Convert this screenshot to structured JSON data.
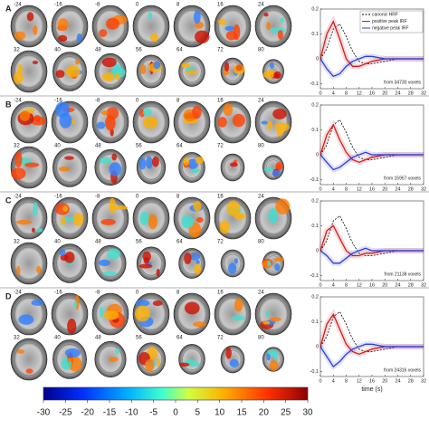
{
  "panels": [
    {
      "label": "A",
      "voxels": "from 34730 voxels",
      "chart": {
        "type": "line",
        "x": [
          0,
          2,
          4,
          6,
          8,
          10,
          12,
          14,
          16,
          20,
          24,
          28,
          32
        ],
        "xlim": [
          0,
          32
        ],
        "xticks": [
          0,
          4,
          8,
          12,
          16,
          20,
          24,
          28,
          32
        ],
        "ylim": [
          -0.12,
          0.2
        ],
        "yticks": [
          0.2,
          0.1,
          0,
          -0.1
        ],
        "legend": "upper right",
        "series": [
          {
            "name": "canonic HRF",
            "color": "#000000",
            "style": "dashed",
            "values": [
              0,
              0.04,
              0.12,
              0.14,
              0.09,
              0.03,
              -0.01,
              -0.02,
              -0.02,
              -0.01,
              0,
              0,
              0
            ]
          },
          {
            "name": "positive peak IRF",
            "color": "#d7191c",
            "style": "solid",
            "values": [
              0,
              0.1,
              0.15,
              0.08,
              0,
              -0.03,
              -0.03,
              -0.02,
              -0.01,
              0,
              0,
              0,
              0
            ]
          },
          {
            "name": "negative peak IRF",
            "color": "#2c3fd6",
            "style": "solid",
            "values": [
              0,
              -0.04,
              -0.07,
              -0.06,
              -0.03,
              -0.01,
              0,
              0.01,
              0.01,
              0,
              0,
              0,
              0
            ]
          }
        ]
      }
    },
    {
      "label": "B",
      "voxels": "from 15957 voxels",
      "chart": {
        "type": "line",
        "x": [
          0,
          2,
          4,
          6,
          8,
          10,
          12,
          14,
          16,
          20,
          24,
          28,
          32
        ],
        "xlim": [
          0,
          32
        ],
        "xticks": [
          0,
          4,
          8,
          12,
          16,
          20,
          24,
          28,
          32
        ],
        "ylim": [
          -0.12,
          0.2
        ],
        "yticks": [
          0.2,
          0.1,
          0,
          -0.1
        ],
        "series": [
          {
            "name": "canonic HRF",
            "color": "#000000",
            "style": "dashed",
            "values": [
              0,
              0.04,
              0.12,
              0.14,
              0.09,
              0.03,
              -0.01,
              -0.02,
              -0.02,
              -0.01,
              0,
              0,
              0
            ]
          },
          {
            "name": "positive peak IRF",
            "color": "#d7191c",
            "style": "solid",
            "values": [
              0,
              0.08,
              0.12,
              0.06,
              0.01,
              -0.02,
              -0.03,
              -0.02,
              -0.01,
              0,
              0,
              0,
              0
            ]
          },
          {
            "name": "negative peak IRF",
            "color": "#2c3fd6",
            "style": "solid",
            "values": [
              0,
              -0.03,
              -0.06,
              -0.05,
              -0.03,
              -0.01,
              0,
              0.01,
              0,
              0,
              0,
              0,
              0
            ]
          }
        ]
      }
    },
    {
      "label": "C",
      "voxels": "from 21138 voxels",
      "chart": {
        "type": "line",
        "x": [
          0,
          2,
          4,
          6,
          8,
          10,
          12,
          14,
          16,
          20,
          24,
          28,
          32
        ],
        "xlim": [
          0,
          32
        ],
        "xticks": [
          0,
          4,
          8,
          12,
          16,
          20,
          24,
          28,
          32
        ],
        "ylim": [
          -0.12,
          0.2
        ],
        "yticks": [
          0.2,
          0.1,
          0,
          -0.1
        ],
        "series": [
          {
            "name": "canonic HRF",
            "color": "#000000",
            "style": "dashed",
            "values": [
              0,
              0.04,
              0.12,
              0.14,
              0.09,
              0.03,
              -0.01,
              -0.02,
              -0.02,
              -0.01,
              0,
              0,
              0
            ]
          },
          {
            "name": "positive peak IRF",
            "color": "#d7191c",
            "style": "solid",
            "values": [
              0,
              0.08,
              0.1,
              0.05,
              0,
              -0.02,
              -0.02,
              -0.01,
              -0.01,
              0,
              0,
              0,
              0
            ]
          },
          {
            "name": "negative peak IRF",
            "color": "#2c3fd6",
            "style": "solid",
            "values": [
              0,
              -0.02,
              -0.05,
              -0.05,
              -0.03,
              -0.01,
              0,
              0.01,
              0,
              0,
              0,
              0,
              0
            ]
          }
        ]
      }
    },
    {
      "label": "D",
      "voxels": "from 24316 voxels",
      "chart": {
        "type": "line",
        "x": [
          0,
          2,
          4,
          6,
          8,
          10,
          12,
          14,
          16,
          20,
          24,
          28,
          32
        ],
        "xlim": [
          0,
          32
        ],
        "xticks": [
          0,
          4,
          8,
          12,
          16,
          20,
          24,
          28,
          32
        ],
        "ylim": [
          -0.12,
          0.2
        ],
        "yticks": [
          0.2,
          0.1,
          0,
          -0.1
        ],
        "xlabel": "time (s)",
        "series": [
          {
            "name": "canonic HRF",
            "color": "#000000",
            "style": "dashed",
            "values": [
              0,
              0.04,
              0.12,
              0.14,
              0.09,
              0.03,
              -0.01,
              -0.02,
              -0.02,
              -0.01,
              0,
              0,
              0
            ]
          },
          {
            "name": "positive peak IRF",
            "color": "#d7191c",
            "style": "solid",
            "values": [
              0,
              0.09,
              0.13,
              0.07,
              0.01,
              -0.02,
              -0.03,
              -0.02,
              -0.01,
              0,
              0,
              0,
              0
            ]
          },
          {
            "name": "negative peak IRF",
            "color": "#2c3fd6",
            "style": "solid",
            "values": [
              0,
              -0.04,
              -0.08,
              -0.06,
              -0.03,
              -0.01,
              0,
              0.01,
              0.01,
              0,
              0,
              0,
              0
            ]
          }
        ]
      }
    }
  ],
  "slices": {
    "row1": [
      -24,
      -16,
      -8,
      0,
      8,
      16,
      24
    ],
    "row2": [
      32,
      40,
      48,
      56,
      64,
      72,
      80
    ]
  },
  "colorbar": {
    "lim": [
      -30,
      30
    ],
    "ticks": [
      -30,
      -25,
      -20,
      -15,
      -10,
      -5,
      0,
      5,
      10,
      15,
      20,
      25,
      30
    ]
  }
}
